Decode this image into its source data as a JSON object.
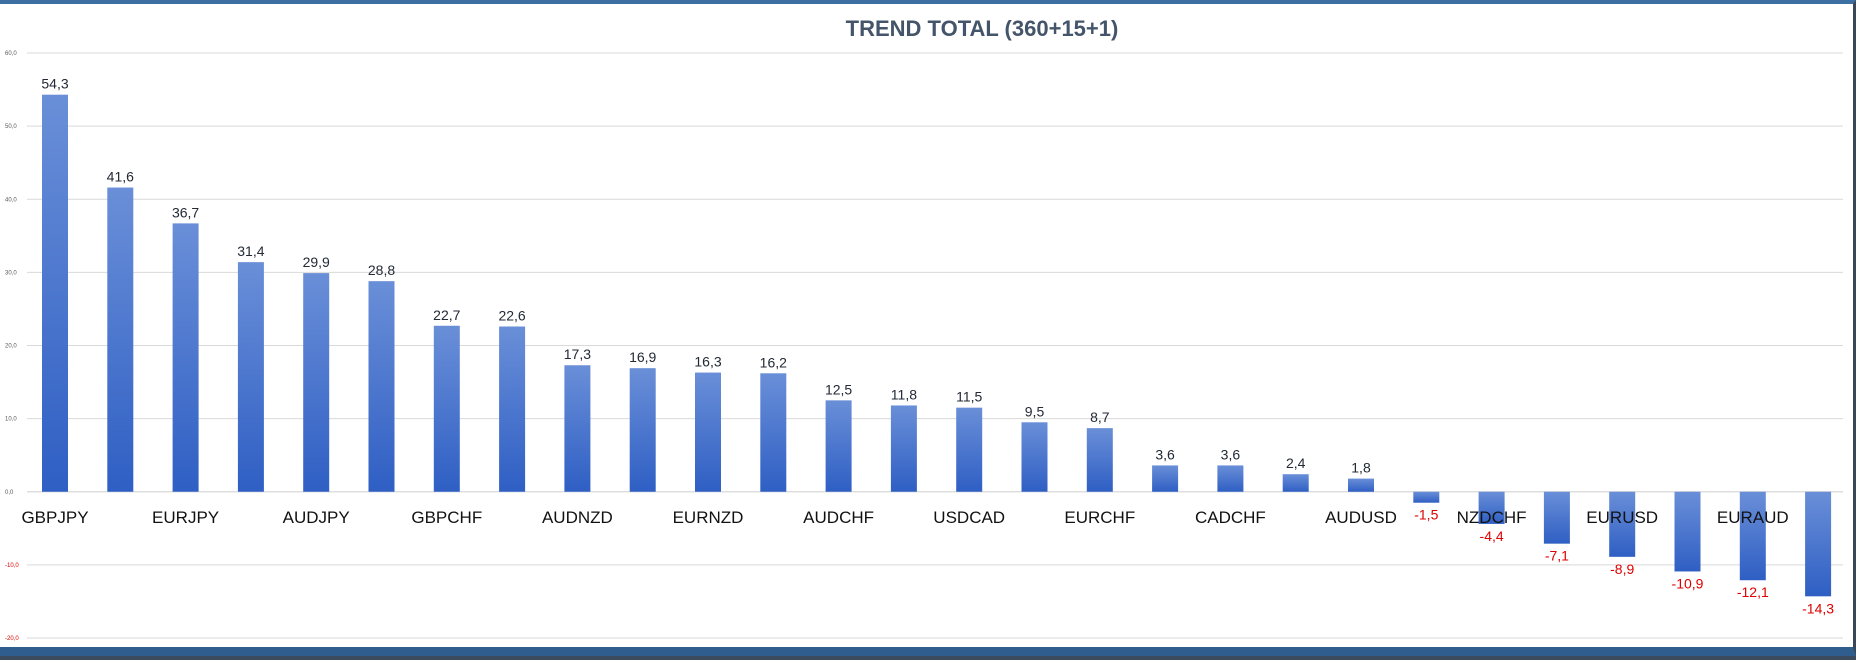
{
  "chart_data": {
    "type": "bar",
    "title": "TREND TOTAL (360+15+1)",
    "xlabel": "",
    "ylabel": "",
    "ylim": [
      -20,
      60
    ],
    "ytick_labels": [
      "60,0",
      "50,0",
      "40,0",
      "30,0",
      "20,0",
      "10,0",
      "0,0",
      "-10,0",
      "-20,0"
    ],
    "grid": true,
    "legend": "none",
    "categories": [
      "GBPJPY",
      "",
      "EURJPY",
      "",
      "AUDJPY",
      "",
      "GBPCHF",
      "",
      "AUDNZD",
      "",
      "EURNZD",
      "",
      "AUDCHF",
      "",
      "USDCAD",
      "",
      "EURCHF",
      "",
      "CADCHF",
      "",
      "AUDUSD",
      "",
      "NZDCHF",
      "",
      "EURUSD",
      "",
      "EURAUD",
      ""
    ],
    "values": [
      54.3,
      41.6,
      36.7,
      31.4,
      29.9,
      28.8,
      22.7,
      22.6,
      17.3,
      16.9,
      16.3,
      16.2,
      12.5,
      11.8,
      11.5,
      9.5,
      8.7,
      3.6,
      3.6,
      2.4,
      1.8,
      -1.5,
      -4.4,
      -7.1,
      -8.9,
      -10.9,
      -12.1,
      -14.3
    ],
    "data_labels": [
      "54,3",
      "41,6",
      "36,7",
      "31,4",
      "29,9",
      "28,8",
      "22,7",
      "22,6",
      "17,3",
      "16,9",
      "16,3",
      "16,2",
      "12,5",
      "11,8",
      "11,5",
      "9,5",
      "8,7",
      "3,6",
      "3,6",
      "2,4",
      "1,8",
      "-1,5",
      "-4,4",
      "-7,1",
      "-8,9",
      "-10,9",
      "-12,1",
      "-14,3"
    ],
    "colors": {
      "bar_top": "#6a8fd8",
      "bar_bottom": "#2f5fc4",
      "label_positive": "#222a35",
      "label_negative": "#e00000",
      "gridline": "#d9d9d9"
    }
  }
}
